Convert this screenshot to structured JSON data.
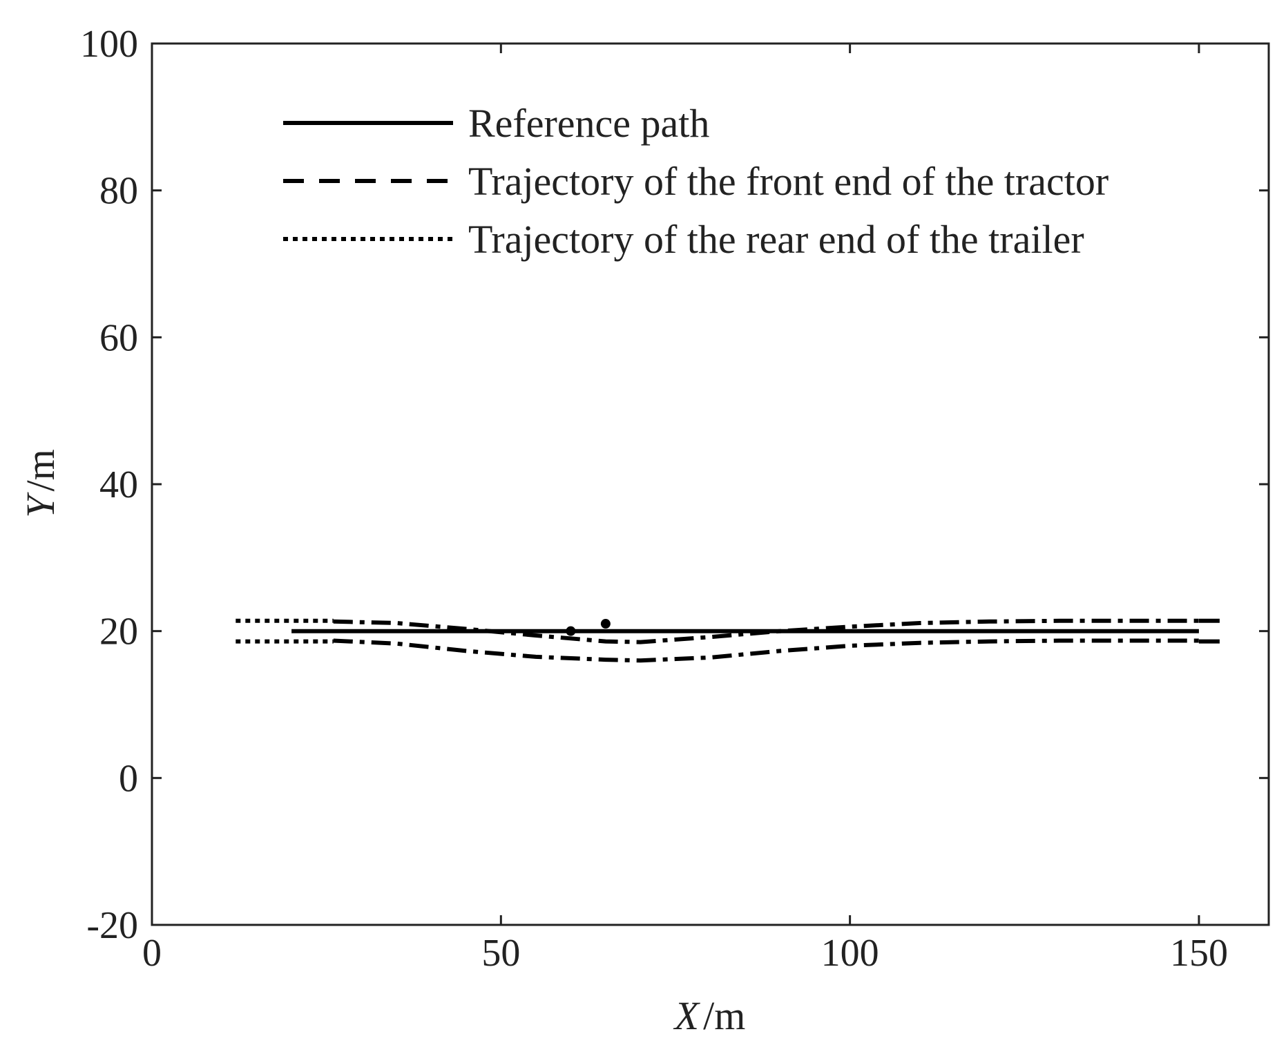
{
  "chart_data": {
    "type": "line",
    "xlabel_var": "X",
    "xlabel_unit": "/m",
    "ylabel_var": "Y",
    "ylabel_unit": "/m",
    "xlim": [
      0,
      160
    ],
    "ylim": [
      -20,
      100
    ],
    "xticks": [
      0,
      50,
      100,
      150
    ],
    "yticks": [
      -20,
      0,
      20,
      40,
      60,
      80,
      100
    ],
    "grid": false,
    "legend_position": "top",
    "series": [
      {
        "name": "Reference path",
        "style": "solid",
        "x": [
          20,
          150
        ],
        "y": [
          20,
          20
        ]
      },
      {
        "name": "Trajectory of the front end of the tractor",
        "style": "dashed",
        "x": [
          150,
          155
        ],
        "y": [
          21.4,
          21.4
        ],
        "x2": [
          150,
          155
        ],
        "y2": [
          18.6,
          18.6
        ]
      },
      {
        "name": "Trajectory of the rear end of the trailer",
        "style": "dotted",
        "x": [
          12,
          26
        ],
        "y": [
          21.4,
          21.4
        ],
        "x2": [
          12,
          26
        ],
        "y2": [
          18.6,
          18.6
        ]
      },
      {
        "style": "dashdot",
        "x": [
          26,
          35,
          45,
          55,
          65,
          70,
          80,
          90,
          100,
          110,
          120,
          130,
          140,
          150
        ],
        "y": [
          21.3,
          21.1,
          20.3,
          19.4,
          18.6,
          18.5,
          19.2,
          20.0,
          20.6,
          21.1,
          21.3,
          21.4,
          21.4,
          21.4
        ]
      },
      {
        "style": "dashdot",
        "x": [
          26,
          35,
          45,
          55,
          65,
          70,
          80,
          90,
          100,
          110,
          120,
          130,
          140,
          150
        ],
        "y": [
          18.7,
          18.3,
          17.3,
          16.5,
          16.1,
          16.0,
          16.4,
          17.3,
          18.0,
          18.4,
          18.6,
          18.7,
          18.7,
          18.7
        ]
      }
    ],
    "points": [
      {
        "x": 60,
        "y": 20
      },
      {
        "x": 65,
        "y": 21
      }
    ]
  },
  "colors": {
    "line": "#000000",
    "axis": "#222222"
  }
}
